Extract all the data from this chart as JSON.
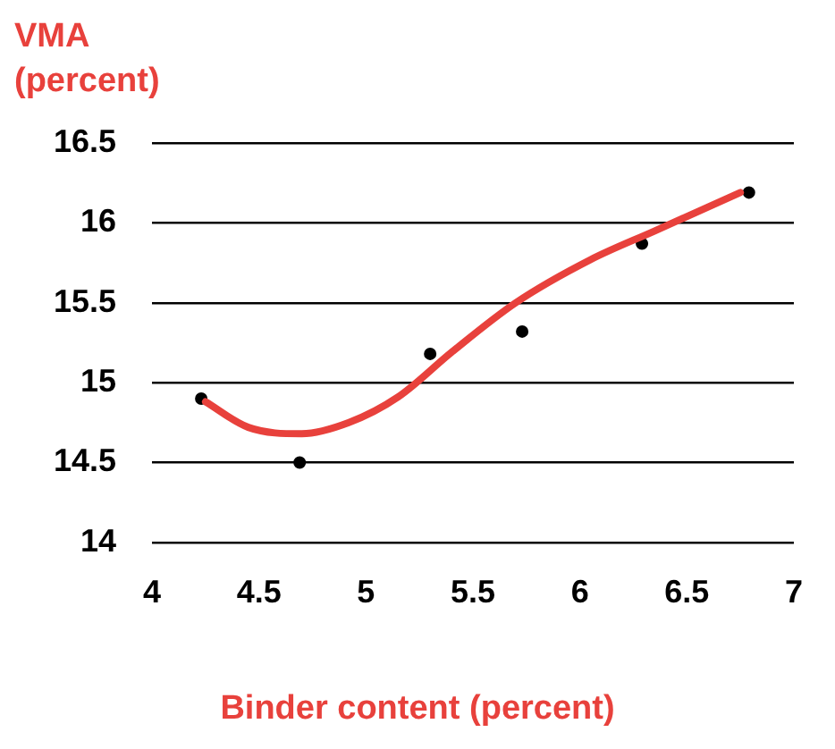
{
  "chart_data": {
    "type": "scatter",
    "ylabel": "VMA (percent)",
    "xlabel": "Binder content (percent)",
    "xlim": [
      4,
      7
    ],
    "xticks": [
      4,
      4.5,
      5,
      5.5,
      6,
      6.5,
      7
    ],
    "ylim": [
      14,
      16.5
    ],
    "yticks": [
      14,
      14.5,
      15,
      15.5,
      16,
      16.5
    ],
    "grid": "y",
    "legend": false,
    "series": [
      {
        "type": "line",
        "color": "#e8413c",
        "marker": "none",
        "x": [
          4.25,
          4.45,
          4.7,
          4.92,
          5.15,
          5.4,
          5.7,
          6.05,
          6.35,
          6.75
        ],
        "values": [
          14.88,
          14.72,
          14.68,
          14.75,
          14.91,
          15.19,
          15.5,
          15.77,
          15.95,
          16.19
        ]
      },
      {
        "color": "#000000",
        "marker": "circle",
        "x": [
          4.23,
          4.69,
          5.3,
          5.73,
          6.29,
          6.79
        ],
        "values": [
          14.9,
          14.5,
          15.18,
          15.32,
          15.87,
          16.19
        ]
      }
    ]
  }
}
